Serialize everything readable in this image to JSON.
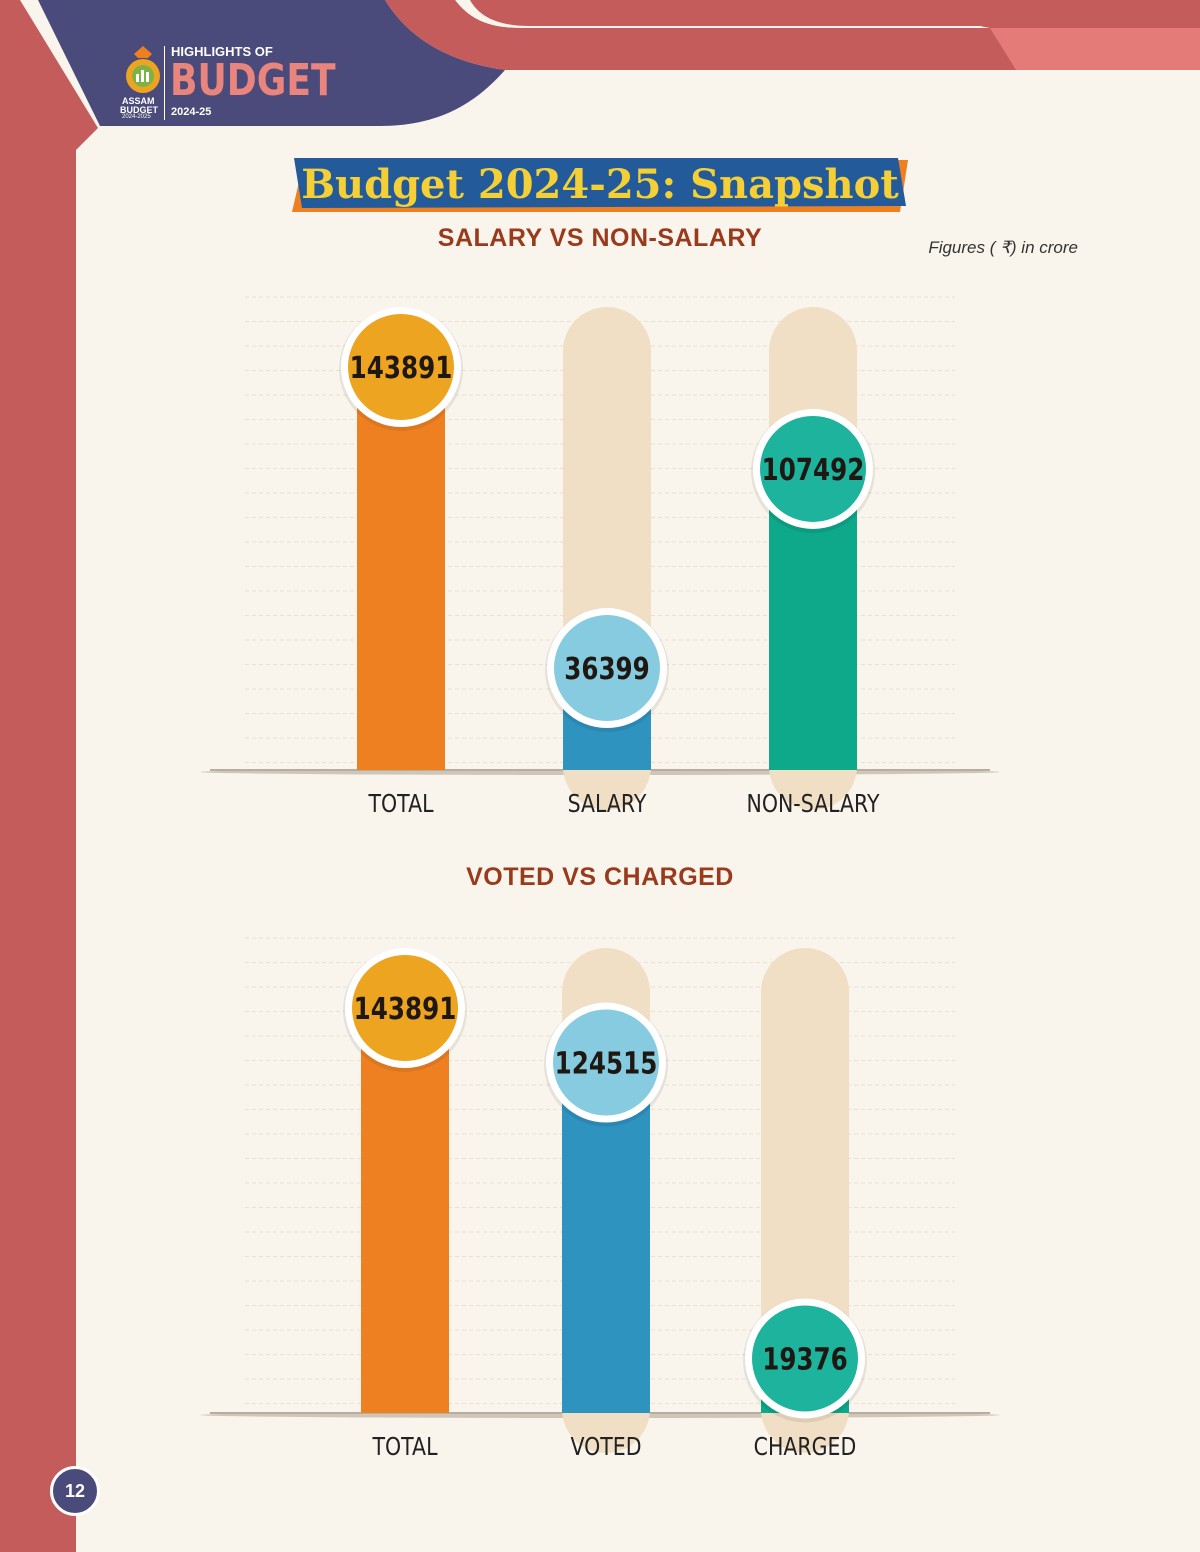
{
  "brand": {
    "highlights_label": "HIGHLIGHTS OF",
    "budget_label": "BUDGET",
    "year_label": "2024-25",
    "seal_line1": "ASSAM",
    "seal_line2": "BUDGET",
    "seal_line3": "2024-2025"
  },
  "page_title": "Budget 2024-25: Snapshot",
  "figures_note": "Figures ( ₹) in crore",
  "page_number": "12",
  "colors": {
    "total": "#ef8022",
    "total_badge": "#eda420",
    "blue": "#2f93c0",
    "blue_badge": "#86cbe0",
    "teal": "#0ea88b",
    "teal_badge": "#1db39c",
    "track": "#f0dfc4",
    "title_text": "#9a3a1c",
    "header_navy": "#4a4b7a",
    "header_red": "#c55c5c"
  },
  "chart_data": [
    {
      "type": "bar",
      "title": "SALARY VS NON-SALARY",
      "categories": [
        "TOTAL",
        "SALARY",
        "NON-SALARY"
      ],
      "values": [
        143891,
        36399,
        107492
      ],
      "data_labels": [
        "143891",
        "36399",
        "107492"
      ],
      "ylim": [
        0,
        143891
      ],
      "grid": true,
      "legend": "none"
    },
    {
      "type": "bar",
      "title": "VOTED VS CHARGED",
      "categories": [
        "TOTAL",
        "VOTED",
        "CHARGED"
      ],
      "values": [
        143891,
        124515,
        19376
      ],
      "data_labels": [
        "143891",
        "124515",
        "19376"
      ],
      "ylim": [
        0,
        143891
      ],
      "grid": true,
      "legend": "none"
    }
  ]
}
